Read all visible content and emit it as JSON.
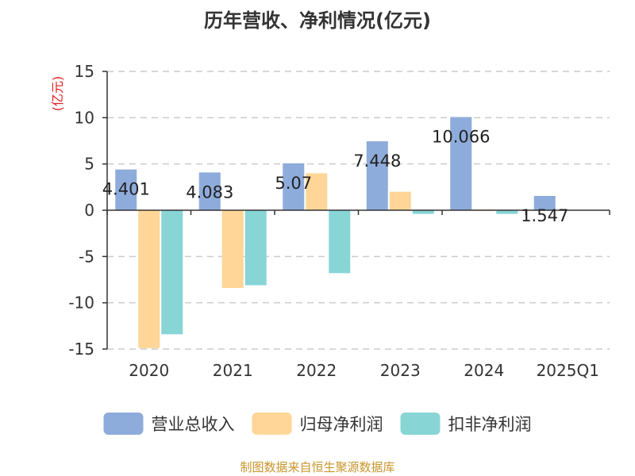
{
  "chart_data": {
    "type": "bar",
    "title": "历年营收、净利情况(亿元)",
    "ylabel": "(亿元)",
    "categories": [
      "2020",
      "2021",
      "2022",
      "2023",
      "2024",
      "2025Q1"
    ],
    "series": [
      {
        "name": "营业总收入",
        "color": "#8eacdb",
        "values": [
          4.401,
          4.083,
          5.07,
          7.448,
          10.066,
          1.547
        ]
      },
      {
        "name": "归母净利润",
        "color": "#ffd697",
        "values": [
          -14.9,
          -8.4,
          4.0,
          2.0,
          0.1,
          0.0
        ]
      },
      {
        "name": "扣非净利润",
        "color": "#88d5d6",
        "values": [
          -13.4,
          -8.1,
          -6.8,
          -0.4,
          -0.4,
          0.0
        ]
      }
    ],
    "data_labels": [
      "4.401",
      "4.083",
      "5.07",
      "7.448",
      "10.066",
      "1.547"
    ],
    "yticks": [
      "15",
      "10",
      "5",
      "0",
      "-5",
      "-10",
      "-15"
    ],
    "ylim": [
      -15,
      15
    ],
    "grid": true,
    "legend_position": "bottom"
  },
  "source": "制图数据来自恒生聚源数据库"
}
